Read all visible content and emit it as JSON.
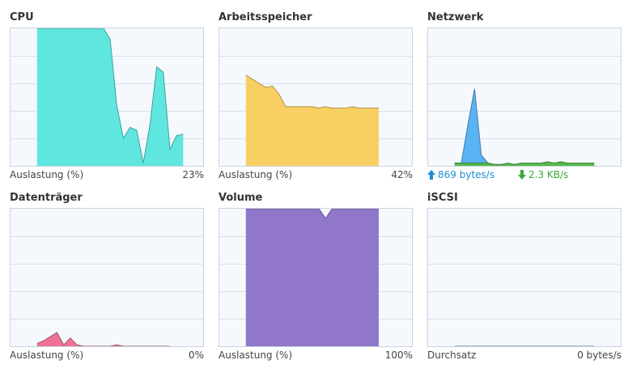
{
  "panels": [
    {
      "title": "CPU",
      "label": "Auslastung (%)",
      "value": "23%"
    },
    {
      "title": "Arbeitsspeicher",
      "label": "Auslastung (%)",
      "value": "42%"
    },
    {
      "title": "Netzwerk",
      "upload": "869 bytes/s",
      "download": "2.3 KB/s"
    },
    {
      "title": "Datenträger",
      "label": "Auslastung (%)",
      "value": "0%"
    },
    {
      "title": "Volume",
      "label": "Auslastung (%)",
      "value": "100%"
    },
    {
      "title": "iSCSI",
      "label": "Durchsatz",
      "value": "0 bytes/s"
    }
  ],
  "icons": {
    "upload": "arrow-up-icon",
    "download": "arrow-down-icon"
  },
  "colors": {
    "cpu": "#5ee6df",
    "memory": "#f8cf63",
    "network_up": "#5ab3f2",
    "network_down": "#55b84a",
    "disk": "#ee7196",
    "volume": "#9177c9",
    "grid": "#d7e0ea",
    "chart_bg": "#f5f9fd",
    "border": "#c9d3de"
  },
  "chart_data": [
    {
      "type": "area",
      "title": "CPU",
      "ylim": [
        0,
        100
      ],
      "x": [
        0,
        1,
        2,
        3,
        4,
        5,
        6,
        7,
        8,
        9,
        10,
        11,
        12,
        13,
        14,
        15,
        16,
        17,
        18,
        19,
        20,
        21,
        22,
        23,
        24,
        25,
        26,
        27,
        28,
        29
      ],
      "series": [
        {
          "values": [
            null,
            null,
            null,
            null,
            100,
            100,
            100,
            100,
            100,
            100,
            100,
            100,
            100,
            100,
            100,
            92,
            44,
            20,
            28,
            26,
            2,
            30,
            72,
            68,
            12,
            22,
            23,
            null,
            null,
            null
          ]
        }
      ]
    },
    {
      "type": "area",
      "title": "Arbeitsspeicher",
      "ylim": [
        0,
        100
      ],
      "x": [
        0,
        1,
        2,
        3,
        4,
        5,
        6,
        7,
        8,
        9,
        10,
        11,
        12,
        13,
        14,
        15,
        16,
        17,
        18,
        19,
        20,
        21,
        22,
        23,
        24,
        25,
        26,
        27,
        28,
        29
      ],
      "series": [
        {
          "values": [
            null,
            null,
            null,
            null,
            66,
            63,
            60,
            57,
            58,
            52,
            43,
            43,
            43,
            43,
            43,
            42,
            43,
            42,
            42,
            42,
            43,
            42,
            42,
            42,
            42,
            null,
            null,
            null,
            null,
            null
          ]
        }
      ]
    },
    {
      "type": "area",
      "title": "Netzwerk",
      "ylim": [
        0,
        100
      ],
      "x": [
        0,
        1,
        2,
        3,
        4,
        5,
        6,
        7,
        8,
        9,
        10,
        11,
        12,
        13,
        14,
        15,
        16,
        17,
        18,
        19,
        20,
        21,
        22,
        23,
        24,
        25,
        26,
        27,
        28,
        29
      ],
      "series": [
        {
          "values": [
            null,
            null,
            null,
            null,
            2,
            2,
            30,
            56,
            8,
            2,
            1,
            0,
            0,
            0,
            1,
            0,
            1,
            1,
            0,
            1,
            0,
            1,
            0,
            0,
            0,
            1,
            null,
            null,
            null,
            null
          ]
        },
        {
          "values": [
            null,
            null,
            null,
            null,
            2,
            2,
            2,
            2,
            2,
            2,
            1,
            1,
            2,
            1,
            2,
            2,
            2,
            2,
            3,
            2,
            3,
            2,
            2,
            2,
            2,
            2,
            null,
            null,
            null,
            null
          ]
        }
      ]
    },
    {
      "type": "area",
      "title": "Datenträger",
      "ylim": [
        0,
        100
      ],
      "x": [
        0,
        1,
        2,
        3,
        4,
        5,
        6,
        7,
        8,
        9,
        10,
        11,
        12,
        13,
        14,
        15,
        16,
        17,
        18,
        19,
        20,
        21,
        22,
        23,
        24,
        25,
        26,
        27,
        28,
        29
      ],
      "series": [
        {
          "values": [
            null,
            null,
            null,
            null,
            2,
            4,
            7,
            10,
            1,
            6,
            1,
            0,
            0,
            0,
            0,
            0,
            1,
            0,
            0,
            0,
            0,
            0,
            0,
            0,
            0,
            null,
            null,
            null,
            null,
            null
          ]
        }
      ]
    },
    {
      "type": "area",
      "title": "Volume",
      "ylim": [
        0,
        100
      ],
      "x": [
        0,
        1,
        2,
        3,
        4,
        5,
        6,
        7,
        8,
        9,
        10,
        11,
        12,
        13,
        14,
        15,
        16,
        17,
        18,
        19,
        20,
        21,
        22,
        23,
        24,
        25,
        26,
        27,
        28,
        29
      ],
      "series": [
        {
          "values": [
            null,
            null,
            null,
            null,
            100,
            100,
            100,
            100,
            100,
            100,
            100,
            100,
            100,
            100,
            100,
            100,
            93,
            100,
            100,
            100,
            100,
            100,
            100,
            100,
            100,
            null,
            null,
            null,
            null,
            null
          ]
        }
      ]
    },
    {
      "type": "area",
      "title": "iSCSI",
      "ylim": [
        0,
        100
      ],
      "x": [
        0,
        1,
        2,
        3,
        4,
        5,
        6,
        7,
        8,
        9,
        10,
        11,
        12,
        13,
        14,
        15,
        16,
        17,
        18,
        19,
        20,
        21,
        22,
        23,
        24,
        25,
        26,
        27,
        28,
        29
      ],
      "series": [
        {
          "values": [
            null,
            null,
            null,
            null,
            0,
            0,
            0,
            0,
            0,
            0,
            0,
            0,
            0,
            0,
            0,
            0,
            0,
            0,
            0,
            0,
            0,
            0,
            0,
            0,
            0,
            0,
            null,
            null,
            null,
            null
          ]
        }
      ]
    }
  ]
}
